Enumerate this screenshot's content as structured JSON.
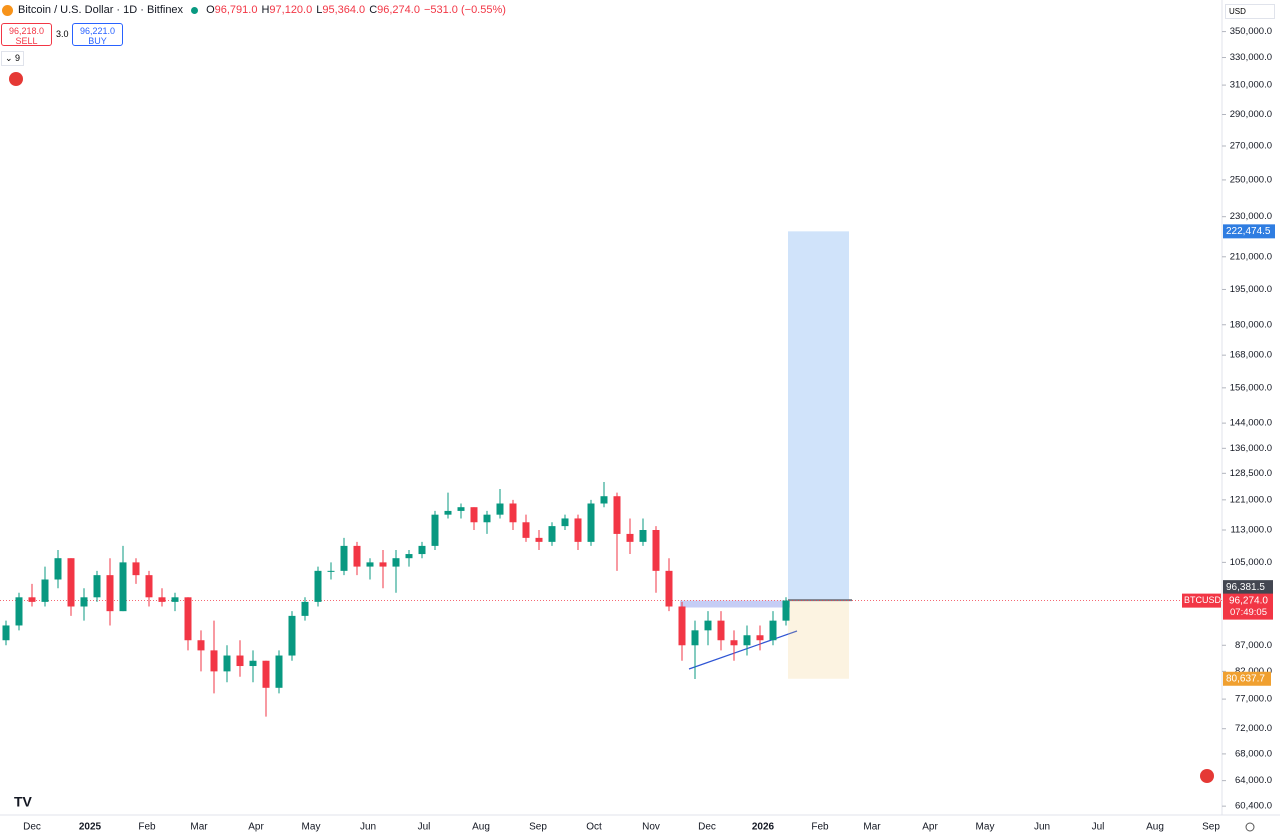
{
  "chart_data": {
    "type": "candlestick",
    "title": "Bitcoin / U.S. Dollar · 1D · Bitfinex",
    "ohlc_header": [
      {
        "key": "O",
        "text": "96,791.0"
      },
      {
        "key": "H",
        "text": "97,120.0"
      },
      {
        "key": "L",
        "text": "95,364.0"
      },
      {
        "key": "C",
        "text": "96,274.0"
      },
      {
        "key": "",
        "text": "−531.0 (−0.55%)"
      }
    ],
    "sell": {
      "price": "96,218.0",
      "label": "SELL"
    },
    "spread": "3.0",
    "buy": {
      "price": "96,221.0",
      "label": "BUY"
    },
    "indicators_count": "9",
    "currency": "USD",
    "up_color": "#089981",
    "down_color": "#f23645",
    "log_scale": true,
    "ylim": [
      59200,
      376000
    ],
    "yticks": [
      {
        "value": 350000,
        "label": "350,000.0"
      },
      {
        "value": 330000,
        "label": "330,000.0"
      },
      {
        "value": 310000,
        "label": "310,000.0"
      },
      {
        "value": 290000,
        "label": "290,000.0"
      },
      {
        "value": 270000,
        "label": "270,000.0"
      },
      {
        "value": 250000,
        "label": "250,000.0"
      },
      {
        "value": 230000,
        "label": "230,000.0"
      },
      {
        "value": 210000,
        "label": "210,000.0"
      },
      {
        "value": 195000,
        "label": "195,000.0"
      },
      {
        "value": 180000,
        "label": "180,000.0"
      },
      {
        "value": 168000,
        "label": "168,000.0"
      },
      {
        "value": 156000,
        "label": "156,000.0"
      },
      {
        "value": 144000,
        "label": "144,000.0"
      },
      {
        "value": 136000,
        "label": "136,000.0"
      },
      {
        "value": 128500,
        "label": "128,500.0"
      },
      {
        "value": 121000,
        "label": "121,000.0"
      },
      {
        "value": 113000,
        "label": "113,000.0"
      },
      {
        "value": 105000,
        "label": "105,000.0"
      },
      {
        "value": 87000,
        "label": "87,000.0"
      },
      {
        "value": 82000,
        "label": "82,000.0"
      },
      {
        "value": 77000,
        "label": "77,000.0"
      },
      {
        "value": 72000,
        "label": "72,000.0"
      },
      {
        "value": 68000,
        "label": "68,000.0"
      },
      {
        "value": 64000,
        "label": "64,000.0"
      },
      {
        "value": 60400,
        "label": "60,400.0"
      }
    ],
    "x_labels": [
      "Dec",
      "2025",
      "Feb",
      "Mar",
      "Apr",
      "May",
      "Jun",
      "Jul",
      "Aug",
      "Sep",
      "Oct",
      "Nov",
      "Dec",
      "2026",
      "Feb",
      "Mar",
      "Apr",
      "May",
      "Jun",
      "Jul",
      "Aug",
      "Sep"
    ],
    "candles": [
      [
        88000,
        92000,
        87000,
        91000
      ],
      [
        91000,
        98000,
        90000,
        97000
      ],
      [
        97000,
        100000,
        95000,
        96000
      ],
      [
        96000,
        104000,
        95000,
        101000
      ],
      [
        101000,
        108000,
        99000,
        106000
      ],
      [
        106000,
        106000,
        93000,
        95000
      ],
      [
        95000,
        99000,
        92000,
        97000
      ],
      [
        97000,
        103000,
        96000,
        102000
      ],
      [
        102000,
        106000,
        91000,
        94000
      ],
      [
        94000,
        109000,
        94000,
        105000
      ],
      [
        105000,
        106000,
        100000,
        102000
      ],
      [
        102000,
        103000,
        95000,
        97000
      ],
      [
        97000,
        99000,
        95000,
        96000
      ],
      [
        96000,
        98000,
        94000,
        97000
      ],
      [
        97000,
        97000,
        86000,
        88000
      ],
      [
        88000,
        90000,
        82000,
        86000
      ],
      [
        86000,
        92000,
        78000,
        82000
      ],
      [
        82000,
        87000,
        80000,
        85000
      ],
      [
        85000,
        88000,
        81000,
        83000
      ],
      [
        83000,
        86000,
        80000,
        84000
      ],
      [
        84000,
        84000,
        74000,
        79000
      ],
      [
        79000,
        86000,
        78000,
        85000
      ],
      [
        85000,
        94000,
        84000,
        93000
      ],
      [
        93000,
        97000,
        92000,
        96000
      ],
      [
        96000,
        104000,
        95000,
        103000
      ],
      [
        103000,
        105000,
        101000,
        103000
      ],
      [
        103000,
        111000,
        102000,
        109000
      ],
      [
        109000,
        110000,
        102000,
        104000
      ],
      [
        104000,
        106000,
        101000,
        105000
      ],
      [
        105000,
        108000,
        99000,
        104000
      ],
      [
        104000,
        108000,
        98000,
        106000
      ],
      [
        106000,
        108000,
        104000,
        107000
      ],
      [
        107000,
        110000,
        106000,
        109000
      ],
      [
        109000,
        118000,
        108000,
        117000
      ],
      [
        117000,
        123000,
        116000,
        118000
      ],
      [
        118000,
        120000,
        116000,
        119000
      ],
      [
        119000,
        119000,
        113000,
        115000
      ],
      [
        115000,
        118000,
        112000,
        117000
      ],
      [
        117000,
        124000,
        116000,
        120000
      ],
      [
        120000,
        121000,
        113000,
        115000
      ],
      [
        115000,
        117000,
        110000,
        111000
      ],
      [
        111000,
        113000,
        108000,
        110000
      ],
      [
        110000,
        115000,
        109000,
        114000
      ],
      [
        114000,
        117000,
        113000,
        116000
      ],
      [
        116000,
        117000,
        108000,
        110000
      ],
      [
        110000,
        121000,
        109000,
        120000
      ],
      [
        120000,
        126000,
        119000,
        122000
      ],
      [
        122000,
        123000,
        103000,
        112000
      ],
      [
        112000,
        116000,
        107000,
        110000
      ],
      [
        110000,
        116000,
        109000,
        113000
      ],
      [
        113000,
        114000,
        98000,
        103000
      ],
      [
        103000,
        106000,
        94000,
        95000
      ],
      [
        95000,
        96000,
        84000,
        87000
      ],
      [
        87000,
        92000,
        80600,
        90000
      ],
      [
        90000,
        94000,
        87000,
        92000
      ],
      [
        92000,
        94000,
        86000,
        88000
      ],
      [
        88000,
        90000,
        84000,
        87000
      ],
      [
        87000,
        91000,
        85000,
        89000
      ],
      [
        89000,
        91000,
        86000,
        88000
      ],
      [
        88000,
        94000,
        87000,
        92000
      ],
      [
        92000,
        97000,
        91000,
        96300
      ]
    ],
    "position": {
      "target": {
        "value": 222474.5,
        "label": "222,474.5"
      },
      "entry": {
        "value": 96381.5,
        "label": "96,381.5"
      },
      "stop": {
        "value": 80637.7,
        "label": "80,637.7"
      }
    },
    "last": {
      "symbol": "BTCUSD",
      "price": {
        "value": 96274,
        "label": "96,274.0"
      },
      "countdown": "07:49:05"
    }
  }
}
